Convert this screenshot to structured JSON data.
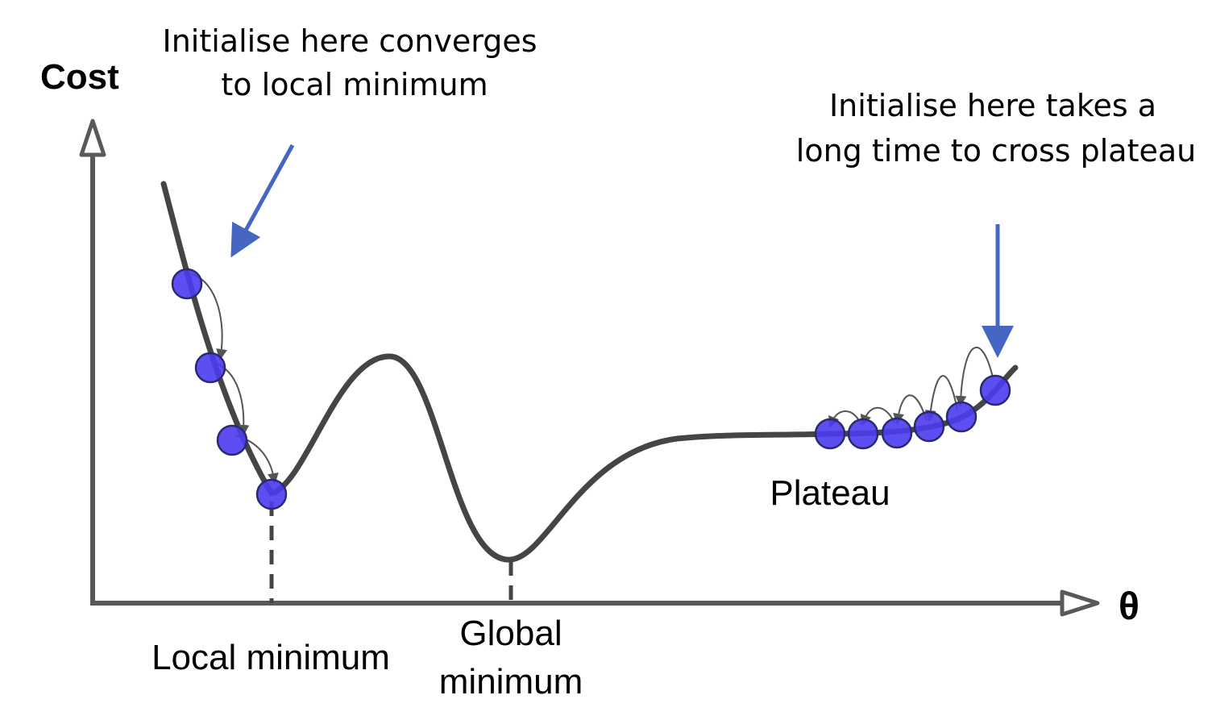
{
  "axes": {
    "y_label": "Cost",
    "x_label": "θ"
  },
  "annotations": {
    "local_init_line1": "Initialise here converges",
    "local_init_line2": "to local minimum",
    "plateau_init_line1": "Initialise here takes a",
    "plateau_init_line2": "long time to cross plateau"
  },
  "labels": {
    "local_minimum": "Local minimum",
    "global_minimum_line1": "Global",
    "global_minimum_line2": "minimum",
    "plateau": "Plateau"
  },
  "colors": {
    "curve": "#454545",
    "axis": "#595959",
    "ball_fill": "#4a3bf0",
    "ball_stroke": "#2a2a6e",
    "pointer_arrow": "#4666c4",
    "step_arrow": "#555555"
  }
}
